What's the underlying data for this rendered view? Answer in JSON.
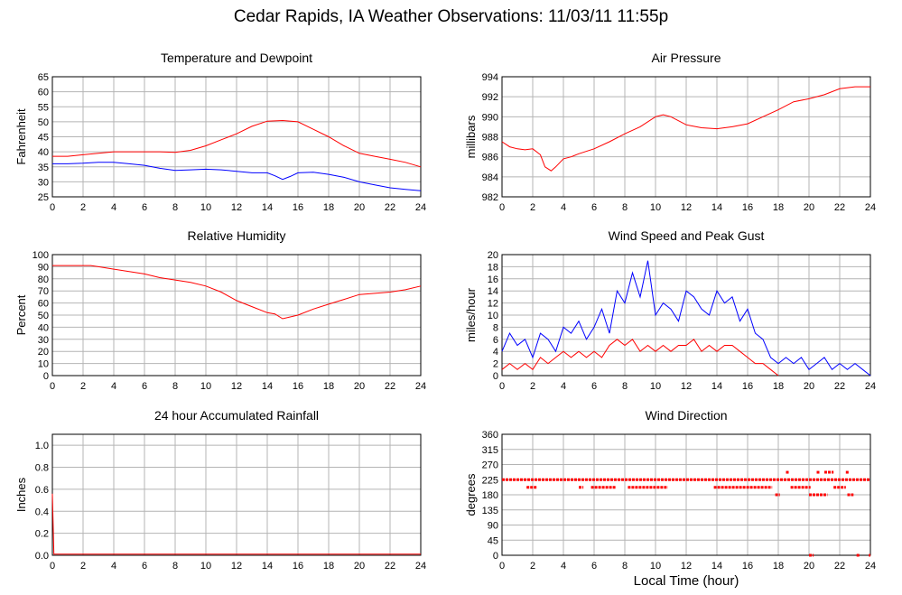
{
  "page_title": "Cedar Rapids, IA Weather Observations: 11/03/11 11:55p",
  "chart_data": [
    {
      "type": "line",
      "title": "Temperature and Dewpoint",
      "ylabel": "Fahrenheit",
      "xlabel": "",
      "xlim": [
        0,
        24
      ],
      "ylim": [
        25,
        65
      ],
      "xticks": [
        0,
        2,
        4,
        6,
        8,
        10,
        12,
        14,
        16,
        18,
        20,
        22,
        24
      ],
      "yticks": [
        25,
        30,
        35,
        40,
        45,
        50,
        55,
        60,
        65
      ],
      "grid": true,
      "series": [
        {
          "color": "#ff0000",
          "x": [
            0,
            1,
            2,
            3,
            4,
            5,
            6,
            7,
            8,
            9,
            10,
            11,
            12,
            13,
            14,
            15,
            16,
            17,
            18,
            19,
            20,
            21,
            22,
            23,
            24
          ],
          "y": [
            38.5,
            38.5,
            39,
            39.5,
            40,
            40,
            40,
            40,
            39.8,
            40.5,
            42,
            44,
            46,
            48.5,
            50.2,
            50.4,
            50,
            47.5,
            45,
            42,
            39.5,
            38.5,
            37.5,
            36.5,
            35
          ]
        },
        {
          "color": "#0000ff",
          "x": [
            0,
            1,
            2,
            3,
            4,
            5,
            6,
            7,
            8,
            9,
            10,
            11,
            12,
            13,
            14,
            14.5,
            15,
            15.5,
            16,
            17,
            18,
            19,
            20,
            21,
            22,
            23,
            24
          ],
          "y": [
            36,
            36,
            36.2,
            36.5,
            36.5,
            36,
            35.5,
            34.5,
            33.8,
            34,
            34.2,
            34,
            33.5,
            33,
            33,
            32,
            30.8,
            31.8,
            33,
            33.2,
            32.5,
            31.5,
            30,
            29,
            28,
            27.5,
            27
          ]
        }
      ]
    },
    {
      "type": "line",
      "title": "Air Pressure",
      "ylabel": "millibars",
      "xlabel": "",
      "xlim": [
        0,
        24
      ],
      "ylim": [
        982,
        994
      ],
      "xticks": [
        0,
        2,
        4,
        6,
        8,
        10,
        12,
        14,
        16,
        18,
        20,
        22,
        24
      ],
      "yticks": [
        982,
        984,
        986,
        988,
        990,
        992,
        994
      ],
      "grid": true,
      "series": [
        {
          "color": "#ff0000",
          "x": [
            0,
            0.5,
            1,
            1.5,
            2,
            2.5,
            2.8,
            3.2,
            3.5,
            4,
            4.5,
            5,
            6,
            7,
            8,
            9,
            10,
            10.5,
            11,
            12,
            13,
            14,
            15,
            16,
            17,
            18,
            19,
            20,
            21,
            22,
            23,
            24
          ],
          "y": [
            987.5,
            987,
            986.8,
            986.7,
            986.8,
            986.2,
            985,
            984.6,
            985,
            985.8,
            986,
            986.3,
            986.8,
            987.5,
            988.3,
            989,
            990,
            990.2,
            990,
            989.2,
            988.9,
            988.8,
            989,
            989.3,
            990,
            990.7,
            991.5,
            991.8,
            992.2,
            992.8,
            993,
            993
          ]
        }
      ]
    },
    {
      "type": "line",
      "title": "Relative Humidity",
      "ylabel": "Percent",
      "xlabel": "",
      "xlim": [
        0,
        24
      ],
      "ylim": [
        0,
        100
      ],
      "xticks": [
        0,
        2,
        4,
        6,
        8,
        10,
        12,
        14,
        16,
        18,
        20,
        22,
        24
      ],
      "yticks": [
        0,
        10,
        20,
        30,
        40,
        50,
        60,
        70,
        80,
        90,
        100
      ],
      "grid": true,
      "series": [
        {
          "color": "#ff0000",
          "x": [
            0,
            1,
            2,
            2.5,
            3,
            4,
            5,
            6,
            7,
            8,
            9,
            10,
            11,
            12,
            13,
            14,
            14.5,
            15,
            16,
            17,
            18,
            19,
            20,
            21,
            22,
            23,
            24
          ],
          "y": [
            91,
            91,
            91,
            91,
            90,
            88,
            86,
            84,
            81,
            79,
            77,
            74,
            69,
            62,
            57,
            52,
            51,
            47,
            50,
            55,
            59,
            63,
            67,
            68,
            69,
            71,
            74
          ]
        }
      ]
    },
    {
      "type": "line",
      "title": "Wind Speed and Peak Gust",
      "ylabel": "miles/hour",
      "xlabel": "",
      "xlim": [
        0,
        24
      ],
      "ylim": [
        0,
        20
      ],
      "xticks": [
        0,
        2,
        4,
        6,
        8,
        10,
        12,
        14,
        16,
        18,
        20,
        22,
        24
      ],
      "yticks": [
        0,
        2,
        4,
        6,
        8,
        10,
        12,
        14,
        16,
        18,
        20
      ],
      "grid": true,
      "series": [
        {
          "color": "#0000ff",
          "x": [
            0,
            0.5,
            1,
            1.5,
            2,
            2.5,
            3,
            3.5,
            4,
            4.5,
            5,
            5.5,
            6,
            6.5,
            7,
            7.5,
            8,
            8.5,
            9,
            9.5,
            10,
            10.5,
            11,
            11.5,
            12,
            12.5,
            13,
            13.5,
            14,
            14.5,
            15,
            15.5,
            16,
            16.5,
            17,
            17.5,
            18,
            18.5,
            19,
            19.5,
            20,
            20.5,
            21,
            21.5,
            22,
            22.5,
            23,
            23.5,
            24
          ],
          "y": [
            4,
            7,
            5,
            6,
            3,
            7,
            6,
            4,
            8,
            7,
            9,
            6,
            8,
            11,
            7,
            14,
            12,
            17,
            13,
            19,
            10,
            12,
            11,
            9,
            14,
            13,
            11,
            10,
            14,
            12,
            13,
            9,
            11,
            7,
            6,
            3,
            2,
            3,
            2,
            3,
            1,
            2,
            3,
            1,
            2,
            1,
            2,
            1,
            0
          ]
        },
        {
          "color": "#ff0000",
          "x": [
            0,
            0.5,
            1,
            1.5,
            2,
            2.5,
            3,
            3.5,
            4,
            4.5,
            5,
            5.5,
            6,
            6.5,
            7,
            7.5,
            8,
            8.5,
            9,
            9.5,
            10,
            10.5,
            11,
            11.5,
            12,
            12.5,
            13,
            13.5,
            14,
            14.5,
            15,
            15.5,
            16,
            16.5,
            17,
            17.5,
            18
          ],
          "y": [
            1,
            2,
            1,
            2,
            1,
            3,
            2,
            3,
            4,
            3,
            4,
            3,
            4,
            3,
            5,
            6,
            5,
            6,
            4,
            5,
            4,
            5,
            4,
            5,
            5,
            6,
            4,
            5,
            4,
            5,
            5,
            4,
            3,
            2,
            2,
            1,
            0
          ]
        }
      ]
    },
    {
      "type": "line",
      "title": "24 hour Accumulated Rainfall",
      "ylabel": "Inches",
      "xlabel": "",
      "xlim": [
        0,
        24
      ],
      "ylim": [
        0,
        1.1
      ],
      "xticks": [
        0,
        2,
        4,
        6,
        8,
        10,
        12,
        14,
        16,
        18,
        20,
        22,
        24
      ],
      "yticks": [
        0.0,
        0.2,
        0.4,
        0.6,
        0.8,
        1.0
      ],
      "ytick_labels": [
        "0.0",
        "0.2",
        "0.4",
        "0.6",
        "0.8",
        "1.0"
      ],
      "grid": true,
      "series": [
        {
          "color": "#ff0000",
          "x": [
            0,
            0.1,
            0.2,
            24
          ],
          "y": [
            0.56,
            0.01,
            0.01,
            0.01
          ]
        }
      ]
    },
    {
      "type": "scatter",
      "title": "Wind Direction",
      "ylabel": "degrees",
      "xlabel": "Local Time (hour)",
      "xlim": [
        0,
        24
      ],
      "ylim": [
        0,
        360
      ],
      "xticks": [
        0,
        2,
        4,
        6,
        8,
        10,
        12,
        14,
        16,
        18,
        20,
        22,
        24
      ],
      "yticks": [
        0,
        45,
        90,
        135,
        180,
        225,
        270,
        315,
        360
      ],
      "grid": true,
      "series": [
        {
          "color": "#ff0000",
          "segments": [
            {
              "y": 225,
              "x_from": 0,
              "x_to": 24
            },
            {
              "y": 202,
              "x_from": 1.6,
              "x_to": 2.3
            },
            {
              "y": 202,
              "x_from": 5.0,
              "x_to": 5.3
            },
            {
              "y": 202,
              "x_from": 5.8,
              "x_to": 7.4
            },
            {
              "y": 202,
              "x_from": 8.2,
              "x_to": 10.8
            },
            {
              "y": 202,
              "x_from": 13.8,
              "x_to": 17.6
            },
            {
              "y": 202,
              "x_from": 18.8,
              "x_to": 20.1
            },
            {
              "y": 202,
              "x_from": 21.6,
              "x_to": 22.4
            },
            {
              "y": 180,
              "x_from": 17.8,
              "x_to": 18.1
            },
            {
              "y": 180,
              "x_from": 20.0,
              "x_to": 21.2
            },
            {
              "y": 180,
              "x_from": 22.5,
              "x_to": 22.9
            },
            {
              "y": 247,
              "x_from": 18.5,
              "x_to": 18.7
            },
            {
              "y": 247,
              "x_from": 20.5,
              "x_to": 20.7
            },
            {
              "y": 247,
              "x_from": 21.0,
              "x_to": 21.6
            },
            {
              "y": 247,
              "x_from": 22.4,
              "x_to": 22.6
            },
            {
              "y": 0,
              "x_from": 20.0,
              "x_to": 20.3
            },
            {
              "y": 0,
              "x_from": 23.1,
              "x_to": 23.3
            },
            {
              "y": 0,
              "x_from": 23.9,
              "x_to": 24.0
            }
          ]
        }
      ]
    }
  ]
}
